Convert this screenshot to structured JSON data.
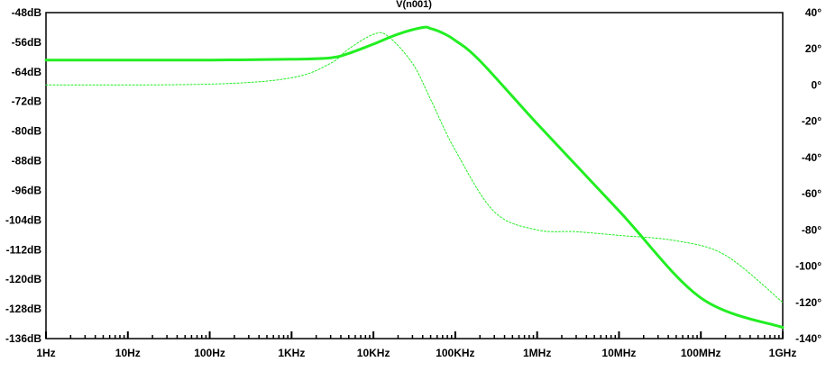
{
  "chart_data": {
    "type": "line",
    "title": "V(n001)",
    "x_scale": "log",
    "xlim_hz": [
      1,
      1000000000
    ],
    "x_tick_values_hz": [
      1,
      10,
      100,
      1000,
      10000,
      100000,
      1000000,
      10000000,
      100000000,
      1000000000
    ],
    "x_tick_labels": [
      "1Hz",
      "10Hz",
      "100Hz",
      "1KHz",
      "10KHz",
      "100KHz",
      "1MHz",
      "10MHz",
      "100MHz",
      "1GHz"
    ],
    "y_left": {
      "unit": "dB",
      "ylim": [
        -136,
        -48
      ],
      "tick_values": [
        -48,
        -56,
        -64,
        -72,
        -80,
        -88,
        -96,
        -104,
        -112,
        -120,
        -128,
        -136
      ],
      "tick_labels": [
        "-48dB",
        "-56dB",
        "-64dB",
        "-72dB",
        "-80dB",
        "-88dB",
        "-96dB",
        "-104dB",
        "-112dB",
        "-120dB",
        "-128dB",
        "-136dB"
      ]
    },
    "y_right": {
      "unit": "degrees",
      "ylim": [
        -140,
        40
      ],
      "tick_values": [
        40,
        20,
        0,
        -20,
        -40,
        -60,
        -80,
        -100,
        -120,
        -140
      ],
      "tick_labels": [
        "40°",
        "20°",
        "0°",
        "-20°",
        "-40°",
        "-60°",
        "-80°",
        "-100°",
        "-120°",
        "-140°"
      ]
    },
    "grid": false,
    "series": [
      {
        "style": "solid-thick",
        "axis": "left",
        "x": [
          1,
          10,
          100,
          1000,
          3000,
          5000,
          10000,
          20000,
          40000,
          50000,
          70000,
          100000,
          200000,
          1000000,
          10000000,
          100000000,
          1000000000
        ],
        "values": [
          -60.8,
          -60.8,
          -60.8,
          -60.6,
          -60.2,
          -59.0,
          -56.5,
          -53.8,
          -52.0,
          -52.3,
          -53.5,
          -55.5,
          -61.0,
          -78.0,
          -101.5,
          -125.0,
          -133.0
        ]
      },
      {
        "style": "dashed-thin",
        "axis": "right",
        "x": [
          1,
          100,
          1000,
          3000,
          5000,
          10000,
          15000,
          30000,
          50000,
          100000,
          300000,
          1000000,
          3000000,
          10000000,
          50000000,
          200000000,
          1000000000
        ],
        "values": [
          0,
          0.5,
          4,
          12,
          20,
          28,
          27,
          12,
          -8,
          -36,
          -70,
          -80,
          -81,
          -83,
          -86,
          -94,
          -120
        ]
      }
    ],
    "line_color": "#22ee22"
  }
}
